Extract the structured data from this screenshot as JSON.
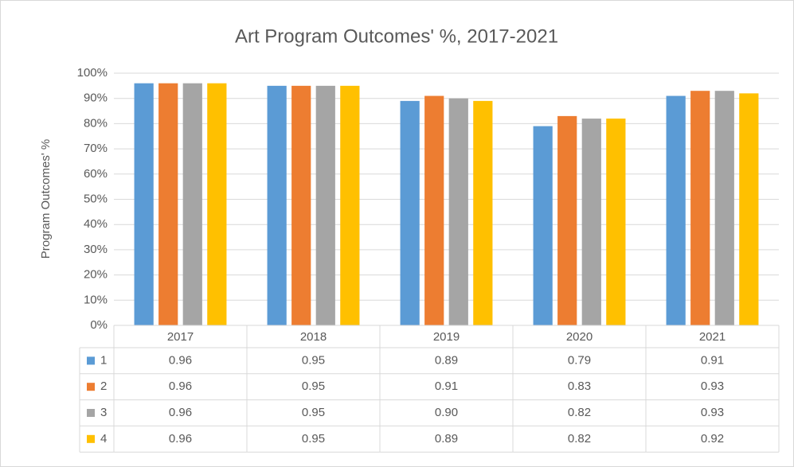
{
  "chart_data": {
    "type": "bar",
    "title": "Art Program Outcomes' %, 2017-2021",
    "y_label": "Program Outcomes' %",
    "categories": [
      "2017",
      "2018",
      "2019",
      "2020",
      "2021"
    ],
    "series": [
      {
        "name": "1",
        "color": "#5b9bd5",
        "values": [
          0.96,
          0.95,
          0.89,
          0.79,
          0.91
        ],
        "value_labels": [
          "0.96",
          "0.95",
          "0.89",
          "0.79",
          "0.91"
        ]
      },
      {
        "name": "2",
        "color": "#ed7d31",
        "values": [
          0.96,
          0.95,
          0.91,
          0.83,
          0.93
        ],
        "value_labels": [
          "0.96",
          "0.95",
          "0.91",
          "0.83",
          "0.93"
        ]
      },
      {
        "name": "3",
        "color": "#a5a5a5",
        "values": [
          0.96,
          0.95,
          0.9,
          0.82,
          0.93
        ],
        "value_labels": [
          "0.96",
          "0.95",
          "0.90",
          "0.82",
          "0.93"
        ]
      },
      {
        "name": "4",
        "color": "#ffc000",
        "values": [
          0.96,
          0.95,
          0.89,
          0.82,
          0.92
        ],
        "value_labels": [
          "0.96",
          "0.95",
          "0.89",
          "0.82",
          "0.92"
        ]
      }
    ],
    "ylim": [
      0,
      1
    ],
    "yticks": [
      {
        "value": 0,
        "label": "0%"
      },
      {
        "value": 0.1,
        "label": "10%"
      },
      {
        "value": 0.2,
        "label": "20%"
      },
      {
        "value": 0.3,
        "label": "30%"
      },
      {
        "value": 0.4,
        "label": "40%"
      },
      {
        "value": 0.5,
        "label": "50%"
      },
      {
        "value": 0.6,
        "label": "60%"
      },
      {
        "value": 0.7,
        "label": "70%"
      },
      {
        "value": 0.8,
        "label": "80%"
      },
      {
        "value": 0.9,
        "label": "90%"
      },
      {
        "value": 1,
        "label": "100%"
      }
    ],
    "grid": true
  }
}
